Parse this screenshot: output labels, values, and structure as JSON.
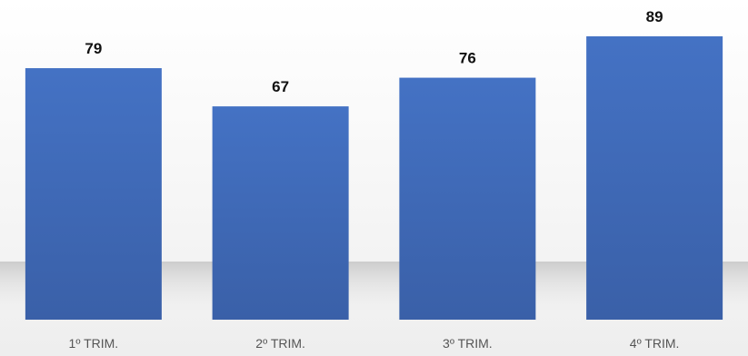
{
  "colors": {
    "bar_top": "#4472c4",
    "bar_bottom": "#3a60a8",
    "value_label": "#111111",
    "category_label": "#555555",
    "floor_shadow": "#c8c8c8"
  },
  "chart_data": {
    "type": "bar",
    "categories": [
      "1º TRIM.",
      "2º TRIM.",
      "3º TRIM.",
      "4º TRIM."
    ],
    "values": [
      79,
      67,
      76,
      89
    ],
    "title": "",
    "xlabel": "",
    "ylabel": "",
    "ylim": [
      0,
      89
    ],
    "grid": false,
    "legend": "none",
    "data_labels": true
  }
}
